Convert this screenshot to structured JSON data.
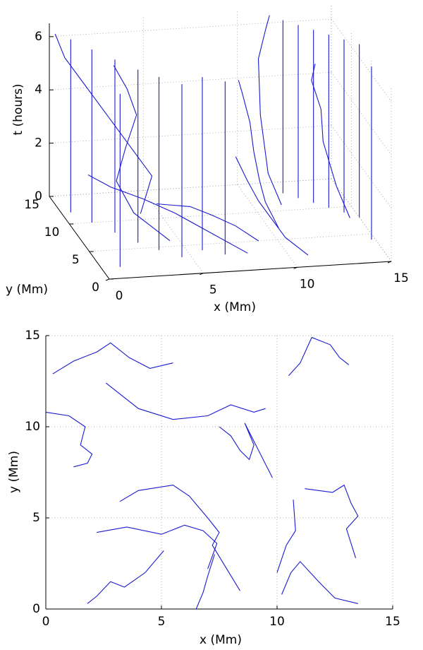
{
  "chart_data": [
    {
      "type": "line3d",
      "xlabel": "x (Mm)",
      "ylabel": "y (Mm)",
      "zlabel": "t (hours)",
      "xlim": [
        0,
        15
      ],
      "ylim": [
        0,
        15
      ],
      "zlim": [
        0,
        6.5
      ],
      "xticks": [
        0,
        5,
        10,
        15
      ],
      "yticks": [
        0,
        5,
        10,
        15
      ],
      "zticks": [
        0,
        2,
        4,
        6
      ],
      "grid": true,
      "color": "#1a1ad0",
      "verticals": {
        "x": [
          0.5,
          1.2,
          2,
          2.8,
          3.6,
          4.5,
          5.8,
          6.8,
          12,
          12.6,
          13.2,
          13.8,
          14.4,
          15,
          1,
          14.8
        ],
        "y": [
          12,
          10,
          8,
          6,
          4.5,
          3,
          4,
          3,
          13,
          12,
          11,
          10,
          9,
          8,
          2,
          4
        ]
      },
      "series": [
        {
          "x": [
            0.2,
            0.5,
            1.5,
            2.5,
            3.5,
            4.5,
            4.0
          ],
          "y": [
            14.5,
            13.5,
            13,
            12,
            11,
            10.5,
            11
          ],
          "t": [
            6.2,
            5.5,
            4.5,
            3.5,
            2.5,
            1.5,
            0
          ]
        },
        {
          "x": [
            3,
            3.5,
            4,
            3.2,
            2.5,
            3,
            4.5
          ],
          "y": [
            13,
            12,
            12,
            11,
            10,
            8,
            6
          ],
          "t": [
            5.2,
            4.5,
            3.5,
            2.5,
            1.5,
            0.7,
            0
          ]
        },
        {
          "x": [
            9,
            9.2,
            9.5,
            9.6,
            9.8,
            10,
            10.5
          ],
          "y": [
            10,
            10,
            9.5,
            9,
            8.5,
            8,
            7
          ],
          "t": [
            5,
            4.5,
            3.5,
            2.5,
            1.5,
            0.8,
            0
          ]
        },
        {
          "x": [
            11.5,
            11.3,
            10.8,
            10.8,
            11,
            11.5
          ],
          "y": [
            14,
            14,
            13.5,
            13,
            12,
            11
          ],
          "t": [
            6.5,
            6,
            5,
            3,
            1,
            0
          ]
        },
        {
          "x": [
            13.5,
            13.2,
            13.6,
            13.5,
            14,
            14.5
          ],
          "y": [
            12,
            11.5,
            11,
            10,
            9,
            8
          ],
          "t": [
            5,
            4.5,
            3.5,
            2.5,
            1,
            0
          ]
        },
        {
          "x": [
            4,
            5,
            6,
            7,
            8,
            9
          ],
          "y": [
            7,
            7.5,
            8,
            7.2,
            6,
            5
          ],
          "t": [
            1.2,
            1.0,
            0.8,
            0.6,
            0.4,
            0
          ]
        },
        {
          "x": [
            1,
            2,
            3.5,
            5,
            6.5,
            8
          ],
          "y": [
            10,
            9,
            8,
            7,
            5,
            3
          ],
          "t": [
            1.8,
            1.5,
            1.2,
            0.8,
            0.4,
            0
          ]
        },
        {
          "x": [
            8,
            8.5,
            9,
            9.5,
            10,
            11
          ],
          "y": [
            6,
            5.5,
            5,
            4,
            3,
            2
          ],
          "t": [
            3,
            2.2,
            1.5,
            1,
            0.5,
            0
          ]
        }
      ]
    },
    {
      "type": "line",
      "xlabel": "x (Mm)",
      "ylabel": "y (Mm)",
      "xlim": [
        0,
        15
      ],
      "ylim": [
        0,
        15
      ],
      "xticks": [
        0,
        5,
        10,
        15
      ],
      "yticks": [
        0,
        5,
        10,
        15
      ],
      "grid": true,
      "color": "#1a1ad0",
      "series": [
        {
          "x": [
            0.3,
            1.2,
            2.2,
            2.8,
            3.6,
            4.5,
            5.5
          ],
          "y": [
            12.9,
            13.6,
            14.1,
            14.6,
            13.8,
            13.2,
            13.5
          ]
        },
        {
          "x": [
            0,
            1.0,
            1.7,
            1.5,
            2.0,
            1.8,
            1.2
          ],
          "y": [
            10.8,
            10.6,
            10.0,
            9.0,
            8.5,
            8.0,
            7.8
          ]
        },
        {
          "x": [
            2.6,
            4,
            5.5,
            7,
            8,
            9,
            9.5
          ],
          "y": [
            12.4,
            11,
            10.4,
            10.6,
            11.2,
            10.8,
            11
          ]
        },
        {
          "x": [
            7.5,
            8.0,
            8.4,
            8.8,
            9.0,
            8.6,
            9.8
          ],
          "y": [
            10.0,
            9.5,
            8.7,
            8.2,
            9.0,
            10.2,
            7.2
          ]
        },
        {
          "x": [
            3.2,
            4,
            5.5,
            6.2,
            7.0,
            7.5,
            7.2,
            8.4
          ],
          "y": [
            5.9,
            6.5,
            6.8,
            6.2,
            5.0,
            4.2,
            3.5,
            1.0
          ]
        },
        {
          "x": [
            2.2,
            3.5,
            5.0,
            6.0,
            6.8,
            7.4,
            7.0
          ],
          "y": [
            4.2,
            4.5,
            4.1,
            4.6,
            4.3,
            3.6,
            2.2
          ]
        },
        {
          "x": [
            11.2,
            12.4,
            12.9,
            13.2,
            13.5,
            13.0,
            13.4
          ],
          "y": [
            6.6,
            6.4,
            6.8,
            5.8,
            5.1,
            4.4,
            2.8
          ]
        },
        {
          "x": [
            10.5,
            11,
            11.5,
            12.3,
            12.7,
            13.1
          ],
          "y": [
            12.8,
            13.5,
            14.9,
            14.5,
            13.8,
            13.4
          ]
        },
        {
          "x": [
            10.2,
            10.6,
            11.0,
            11.8,
            12.5,
            13.5
          ],
          "y": [
            0.8,
            2.0,
            2.6,
            1.5,
            0.6,
            0.3
          ]
        },
        {
          "x": [
            1.8,
            2.2,
            2.8,
            3.4,
            4.3,
            5.1
          ],
          "y": [
            0.3,
            0.7,
            1.5,
            1.2,
            2.0,
            3.2
          ]
        },
        {
          "x": [
            6.5,
            6.8,
            7.0,
            7.3
          ],
          "y": [
            0,
            0.9,
            1.8,
            3.0
          ]
        },
        {
          "x": [
            10.0,
            10.4,
            10.8,
            10.7
          ],
          "y": [
            2.0,
            3.5,
            4.3,
            6.0
          ]
        }
      ]
    }
  ]
}
